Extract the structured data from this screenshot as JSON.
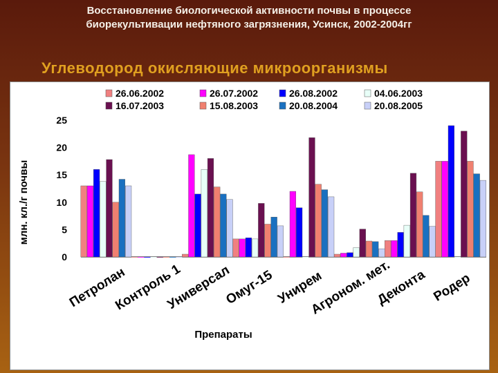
{
  "slide": {
    "title_line1": "Восстановление биологической активности почвы в процессе",
    "title_line2": "биорекультивации нефтяного загрязнения, Усинск, 2002-2004гг",
    "subtitle": "Углеводород окисляющие микроорганизмы"
  },
  "chart_data": {
    "type": "bar",
    "xlabel": "Препараты",
    "ylabel": "млн. кл./г почвы",
    "ylim": [
      0,
      25
    ],
    "yticks": [
      0,
      5,
      10,
      15,
      20,
      25
    ],
    "legend_position": "top",
    "categories": [
      "Петролан",
      "Контроль 1",
      "Универсал",
      "Омуг-15",
      "Унирем",
      "Агроном. мет.",
      "Деконта",
      "Родер"
    ],
    "series": [
      {
        "name": "26.06.2002",
        "color": "#f08080",
        "values": [
          13,
          0,
          0.5,
          3.3,
          0,
          0.5,
          3,
          17.5
        ]
      },
      {
        "name": "26.07.2002",
        "color": "#ff00ff",
        "values": [
          13,
          0,
          18.7,
          3.3,
          12,
          0.7,
          3,
          17.5
        ]
      },
      {
        "name": "26.08.2002",
        "color": "#0000ff",
        "values": [
          16,
          0,
          11.5,
          3.5,
          9,
          0.8,
          4.5,
          24
        ]
      },
      {
        "name": "04.06.2003",
        "color": "#e8fff8",
        "values": [
          13.8,
          0,
          16,
          3.3,
          0,
          1.7,
          5.8,
          0
        ]
      },
      {
        "name": "16.07.2003",
        "color": "#6a1050",
        "values": [
          17.8,
          0,
          18,
          9.8,
          21.8,
          5.1,
          15.3,
          23
        ]
      },
      {
        "name": "15.08.2003",
        "color": "#f08070",
        "values": [
          10,
          0,
          12.8,
          6,
          13.3,
          2.9,
          11.9,
          17.5
        ]
      },
      {
        "name": "20.08.2004",
        "color": "#1a70c0",
        "values": [
          14.2,
          0,
          11.5,
          7.3,
          12.3,
          2.8,
          7.6,
          15.2
        ]
      },
      {
        "name": "20.08.2005",
        "color": "#c8d0f8",
        "values": [
          13,
          0,
          10.5,
          5.7,
          11,
          1.5,
          5.6,
          14
        ]
      }
    ]
  }
}
